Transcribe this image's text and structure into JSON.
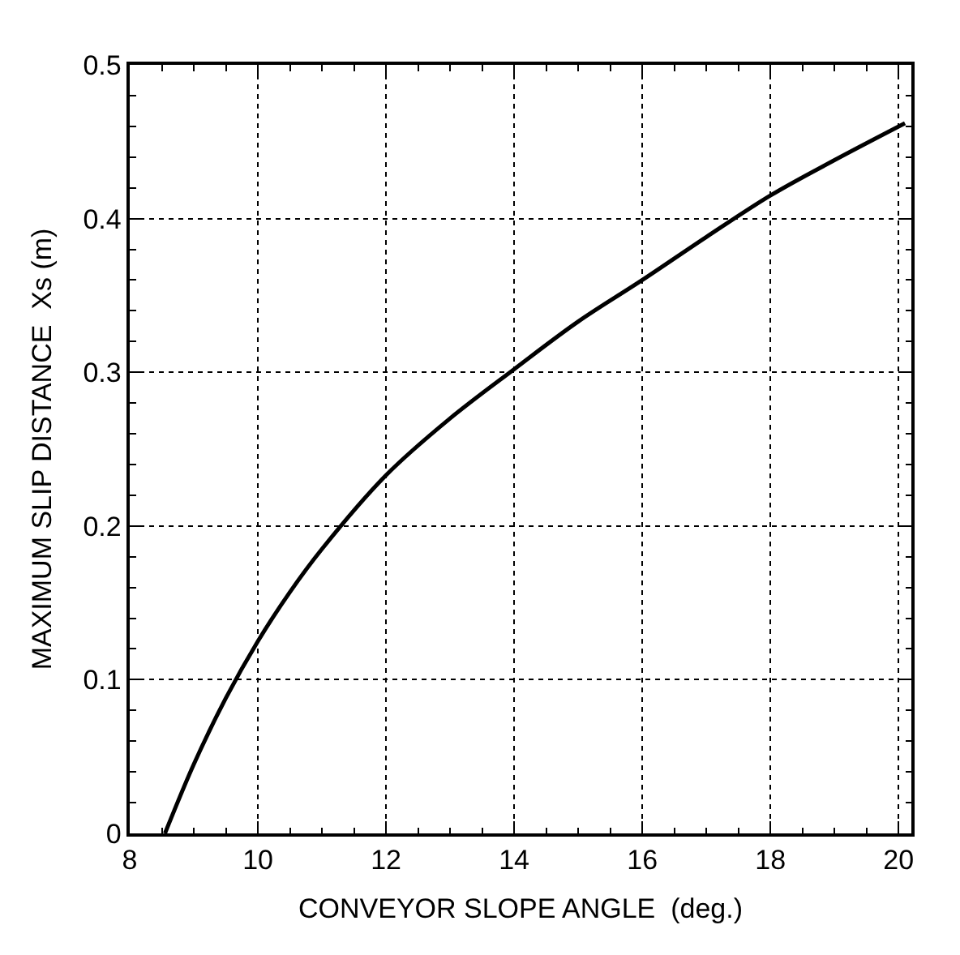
{
  "chart_data": {
    "type": "line",
    "xlabel": "CONVEYOR SLOPE ANGLE  (deg.)",
    "ylabel": "MAXIMUM SLIP DISTANCE  Xs (m)",
    "x": [
      8.55,
      9,
      9.5,
      10,
      10.5,
      11,
      12,
      13,
      14,
      15,
      16,
      17,
      18,
      19,
      20.1
    ],
    "series": [
      {
        "color": "#000000",
        "values": [
          0,
          0.045,
          0.088,
          0.125,
          0.157,
          0.185,
          0.233,
          0.27,
          0.302,
          0.333,
          0.36,
          0.388,
          0.415,
          0.438,
          0.462
        ]
      }
    ],
    "xlim": [
      8,
      20.2
    ],
    "ylim": [
      0,
      0.5
    ],
    "xticks": [
      8,
      10,
      12,
      14,
      16,
      18,
      20
    ],
    "yticks": [
      0,
      0.1,
      0.2,
      0.3,
      0.4,
      0.5
    ],
    "grid": true,
    "marker": "none",
    "line_style": "solid"
  }
}
